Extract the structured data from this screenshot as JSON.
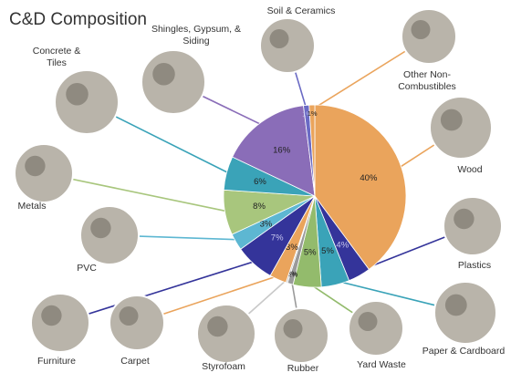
{
  "chart_data": {
    "type": "pie",
    "title": "C&D Composition",
    "categories": [
      "Wood",
      "Plastics",
      "Paper & Cardboard",
      "Yard Waste",
      "Rubber",
      "Styrofoam",
      "Carpet",
      "Furniture",
      "PVC",
      "Metals",
      "Concrete & Tiles",
      "Shingles, Gypsum, & Siding",
      "Soil & Ceramics",
      "Other Non-Combustibles"
    ],
    "values": [
      40,
      4,
      5,
      5,
      1,
      0.3,
      3,
      7,
      3,
      8,
      6,
      16,
      1,
      1
    ],
    "value_labels": [
      "40%",
      "4%",
      "5%",
      "5%",
      "1%",
      "0.3%",
      "3%",
      "7%",
      "3%",
      "8%",
      "6%",
      "16%",
      "1%",
      "1%"
    ],
    "colors": [
      "#eaa45c",
      "#34349a",
      "#3aa3b8",
      "#93bb6c",
      "#9a9a9a",
      "#c9c9c9",
      "#eaa45c",
      "#34349a",
      "#5db7d2",
      "#a8c67d",
      "#3aa3b8",
      "#8a6db8",
      "#6a6ac4",
      "#eaa45c"
    ]
  }
}
